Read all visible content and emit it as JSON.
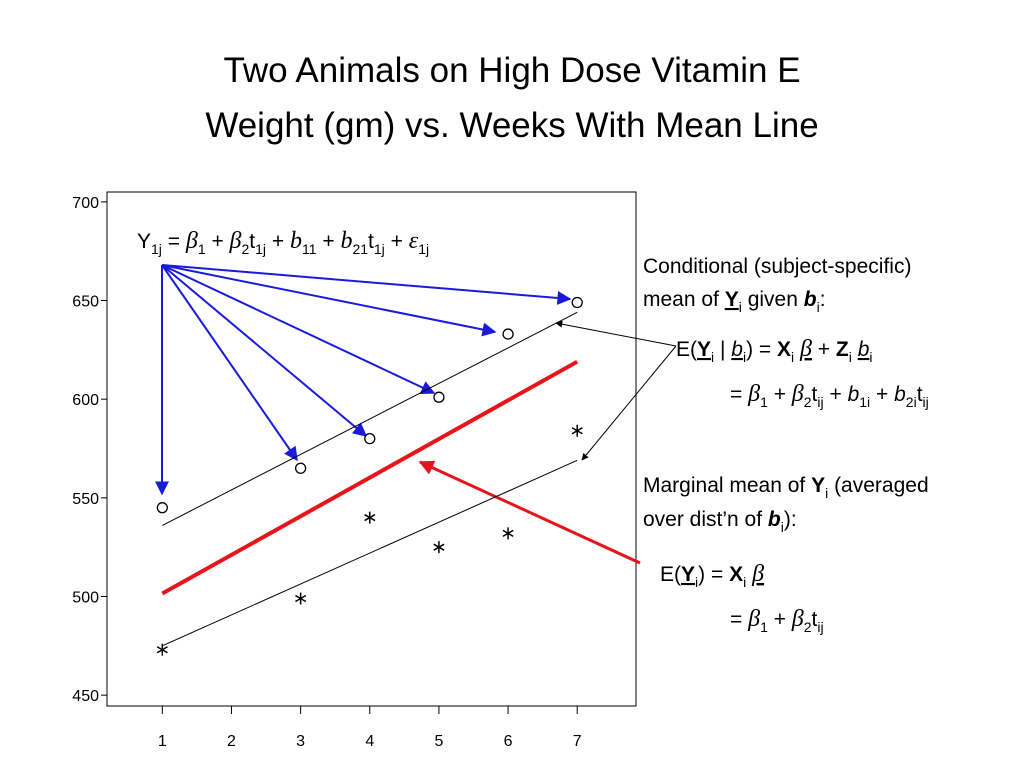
{
  "chart_data": {
    "type": "scatter",
    "title": [
      "Two Animals on High Dose Vitamin E",
      "Weight (gm) vs. Weeks With Mean Line"
    ],
    "xlim": [
      0.2,
      7.85
    ],
    "ylim": [
      444.5,
      705
    ],
    "xticks": [
      1,
      2,
      3,
      4,
      5,
      6,
      7
    ],
    "yticks": [
      450,
      500,
      550,
      600,
      650,
      700
    ],
    "series": [
      {
        "marker": "circle",
        "color": "#000000",
        "x": [
          1,
          3,
          4,
          5,
          6,
          7
        ],
        "values": [
          545,
          565,
          580,
          601,
          633,
          649
        ]
      },
      {
        "marker": "star",
        "color": "#000000",
        "x": [
          1,
          3,
          4,
          5,
          6,
          7
        ],
        "values": [
          473,
          499,
          540,
          525,
          532,
          584
        ]
      },
      {
        "marker": "line",
        "color": "#000000",
        "line_width": 1,
        "x": [
          1,
          7
        ],
        "values": [
          536,
          644
        ]
      },
      {
        "marker": "line",
        "color": "#000000",
        "line_width": 1,
        "x": [
          1,
          7
        ],
        "values": [
          475,
          569
        ]
      },
      {
        "marker": "line",
        "color": "#e8141c",
        "line_width": 4,
        "x": [
          1,
          7
        ],
        "values": [
          501.5,
          619
        ]
      }
    ],
    "equations": [
      [
        {
          "text": "Y"
        },
        {
          "text": "1j",
          "sub": true
        },
        {
          "text": " = "
        },
        {
          "text": "β",
          "serif": true,
          "italic": true
        },
        {
          "text": "1",
          "sub": true
        },
        {
          "text": " + "
        },
        {
          "text": "β",
          "serif": true,
          "italic": true
        },
        {
          "text": "2",
          "sub": true
        },
        {
          "text": "t"
        },
        {
          "text": "1j",
          "sub": true
        },
        {
          "text": " + "
        },
        {
          "text": "b",
          "serif": true,
          "italic": true
        },
        {
          "text": "11",
          "sub": true
        },
        {
          "text": " + "
        },
        {
          "text": "b",
          "serif": true,
          "italic": true
        },
        {
          "text": "21",
          "sub": true
        },
        {
          "text": "t"
        },
        {
          "text": "1j",
          "sub": true
        },
        {
          "text": " + "
        },
        {
          "text": "ε",
          "serif": true,
          "italic": true
        },
        {
          "text": "1j",
          "sub": true
        }
      ],
      [
        {
          "text": "Conditional (subject-specific)"
        }
      ],
      [
        {
          "text": "mean of "
        },
        {
          "text": "Y",
          "bold": true,
          "underline": true
        },
        {
          "text": "i",
          "sub": true
        },
        {
          "text": " given "
        },
        {
          "text": "b",
          "bold": true,
          "italic": true
        },
        {
          "text": "i",
          "sub": true
        },
        {
          "text": ":"
        }
      ],
      [
        {
          "text": "E("
        },
        {
          "text": "Y",
          "bold": true,
          "underline": true
        },
        {
          "text": "i",
          "sub": true
        },
        {
          "text": " | "
        },
        {
          "text": "b",
          "italic": true,
          "underline": true
        },
        {
          "text": "i",
          "sub": true
        },
        {
          "text": ") = "
        },
        {
          "text": "X",
          "bold": true
        },
        {
          "text": "i",
          "sub": true
        },
        {
          "text": " "
        },
        {
          "text": "β",
          "serif": true,
          "italic": true,
          "underline": true
        },
        {
          "text": " + "
        },
        {
          "text": "Z",
          "bold": true
        },
        {
          "text": "i",
          "sub": true
        },
        {
          "text": " "
        },
        {
          "text": "b",
          "italic": true,
          "underline": true
        },
        {
          "text": "i",
          "sub": true
        }
      ],
      [
        {
          "text": "= "
        },
        {
          "text": "β",
          "serif": true,
          "italic": true
        },
        {
          "text": "1",
          "sub": true
        },
        {
          "text": " + "
        },
        {
          "text": "β",
          "serif": true,
          "italic": true
        },
        {
          "text": "2",
          "sub": true
        },
        {
          "text": "t"
        },
        {
          "text": "ij",
          "sub": true
        },
        {
          "text": " + "
        },
        {
          "text": "b",
          "italic": true
        },
        {
          "text": "1i",
          "sub": true
        },
        {
          "text": " + "
        },
        {
          "text": "b",
          "italic": true
        },
        {
          "text": "2i",
          "sub": true
        },
        {
          "text": "t"
        },
        {
          "text": "ij",
          "sub": true
        }
      ],
      [
        {
          "text": "Marginal mean of "
        },
        {
          "text": "Y",
          "bold": true
        },
        {
          "text": "i",
          "sub": true
        },
        {
          "text": " (averaged"
        }
      ],
      [
        {
          "text": "over dist’n of "
        },
        {
          "text": "b",
          "bold": true,
          "italic": true
        },
        {
          "text": "i",
          "sub": true
        },
        {
          "text": "):"
        }
      ],
      [
        {
          "text": "E("
        },
        {
          "text": "Y",
          "bold": true,
          "underline": true
        },
        {
          "text": "i",
          "sub": true
        },
        {
          "text": ") = "
        },
        {
          "text": "X",
          "bold": true
        },
        {
          "text": "i",
          "sub": true
        },
        {
          "text": " "
        },
        {
          "text": "β",
          "serif": true,
          "italic": true,
          "underline": true
        }
      ],
      [
        {
          "text": "= "
        },
        {
          "text": "β",
          "serif": true,
          "italic": true
        },
        {
          "text": "1",
          "sub": true
        },
        {
          "text": " + "
        },
        {
          "text": "β",
          "serif": true,
          "italic": true
        },
        {
          "text": "2",
          "sub": true
        },
        {
          "text": "t"
        },
        {
          "text": "ij",
          "sub": true
        }
      ]
    ]
  }
}
